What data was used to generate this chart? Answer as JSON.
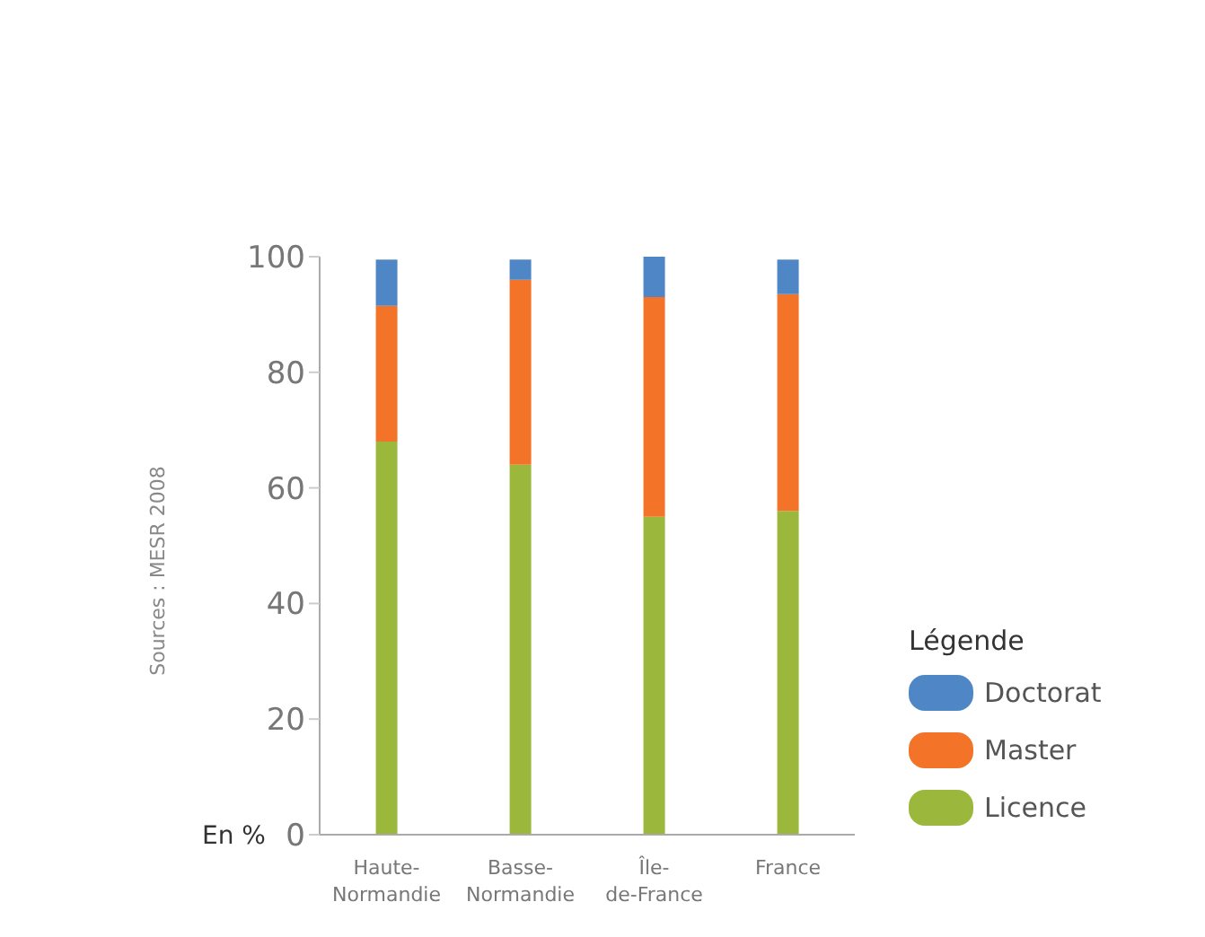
{
  "chart_data": {
    "type": "bar",
    "stacked": true,
    "categories": [
      "Haute-Normandie",
      "Basse-Normandie",
      "Île-de-France",
      "France"
    ],
    "series": [
      {
        "name": "Licence",
        "color": "#9bb83c",
        "values": [
          68,
          64,
          55,
          56
        ]
      },
      {
        "name": "Master",
        "color": "#f37328",
        "values": [
          23.5,
          32,
          38,
          37.5
        ]
      },
      {
        "name": "Doctorat",
        "color": "#4f86c6",
        "values": [
          8,
          3.5,
          7,
          6
        ]
      }
    ],
    "ylabel": "En %",
    "ylim": [
      0,
      100
    ],
    "yticks": [
      0,
      20,
      40,
      60,
      80,
      100
    ],
    "legend": "bottom right",
    "legend_title": "Légende",
    "annotations": [
      "Sources : MESR 2008"
    ]
  }
}
